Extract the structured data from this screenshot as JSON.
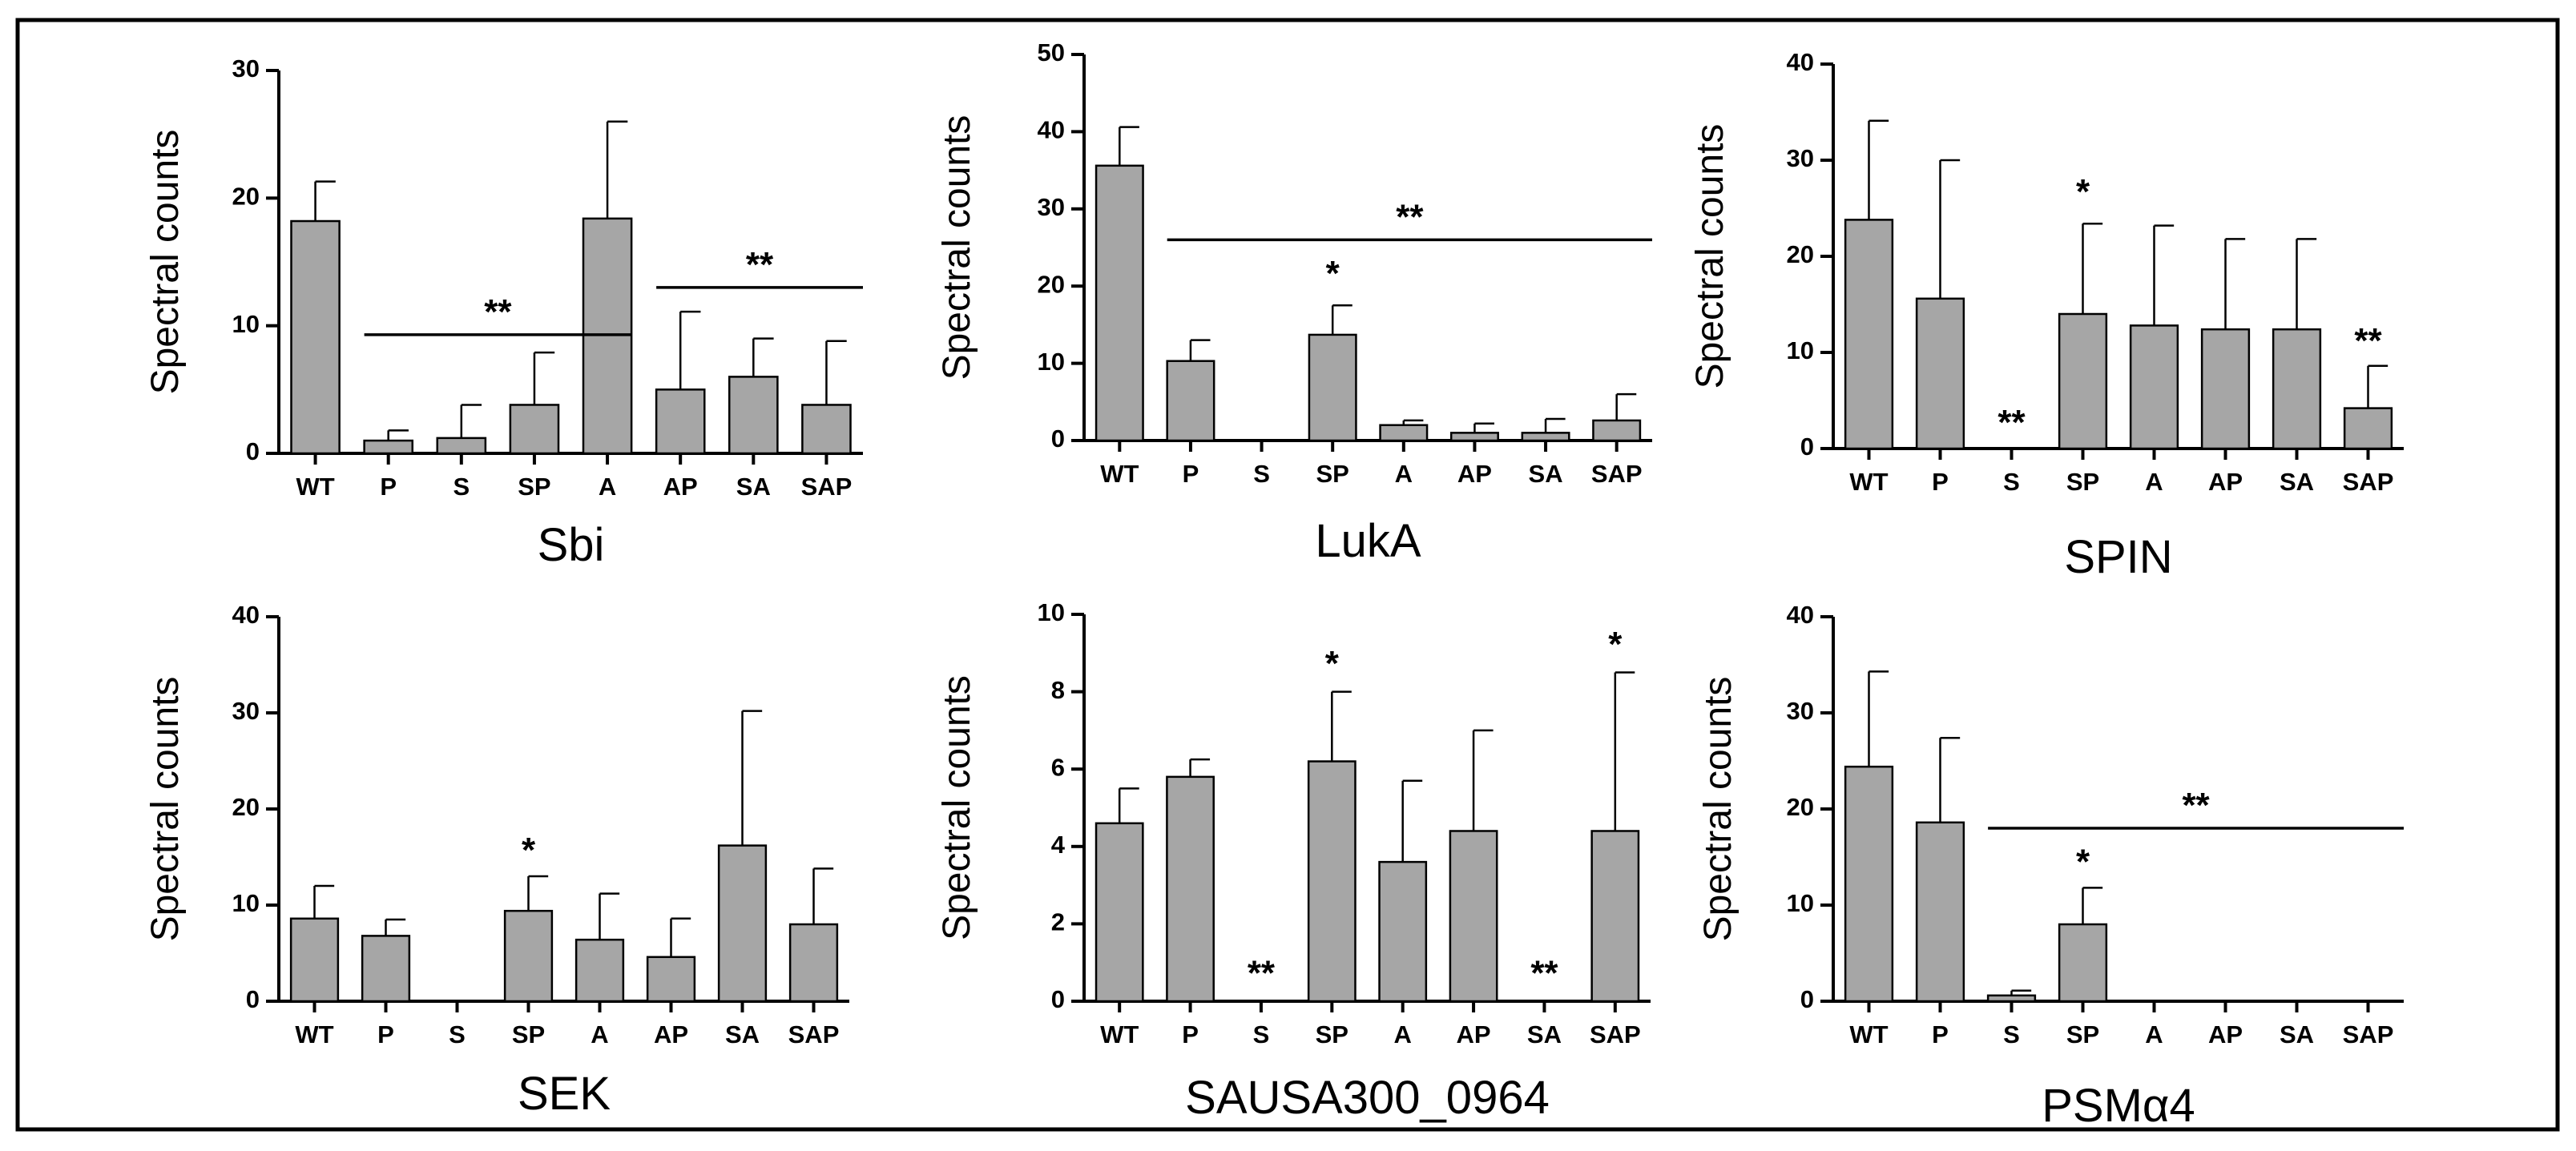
{
  "chart_data": [
    {
      "type": "bar",
      "title": "Sbi",
      "xlabel": "",
      "ylabel": "Spectral counts",
      "ylim": [
        0,
        30
      ],
      "yticks": [
        "0",
        "10",
        "20",
        "30"
      ],
      "categories": [
        "WT",
        "P",
        "S",
        "SP",
        "A",
        "AP",
        "SA",
        "SAP"
      ],
      "values": [
        18.2,
        1.0,
        1.2,
        3.8,
        18.4,
        5.0,
        6.0,
        3.8
      ],
      "errors": [
        3.1,
        0.8,
        2.6,
        4.1,
        7.6,
        6.1,
        3.0,
        5.0
      ],
      "significance": [
        {
          "label": "**",
          "from": "P",
          "to": "A",
          "y": 9.3
        },
        {
          "label": "**",
          "from": "AP",
          "to": "SAP",
          "y": 13.0
        }
      ]
    },
    {
      "type": "bar",
      "title": "LukA",
      "xlabel": "",
      "ylabel": "Spectral counts",
      "ylim": [
        0,
        50
      ],
      "yticks": [
        "0",
        "10",
        "20",
        "30",
        "40",
        "50"
      ],
      "categories": [
        "WT",
        "P",
        "S",
        "SP",
        "A",
        "AP",
        "SA",
        "SAP"
      ],
      "values": [
        35.6,
        10.3,
        0,
        13.7,
        2.0,
        1.0,
        1.0,
        2.6
      ],
      "errors": [
        5.0,
        2.7,
        0,
        3.8,
        0.6,
        1.2,
        1.8,
        3.4
      ],
      "significance": [
        {
          "label": "*",
          "at": "SP",
          "y": 19.5
        },
        {
          "label": "**",
          "from": "P",
          "to": "SAP",
          "y": 26.0
        }
      ]
    },
    {
      "type": "bar",
      "title": "SPIN",
      "xlabel": "",
      "ylabel": "Spectral counts",
      "ylim": [
        0,
        40
      ],
      "yticks": [
        "0",
        "10",
        "20",
        "30",
        "40"
      ],
      "categories": [
        "WT",
        "P",
        "S",
        "SP",
        "A",
        "AP",
        "SA",
        "SAP"
      ],
      "values": [
        23.8,
        15.6,
        0,
        14.0,
        12.8,
        12.4,
        12.4,
        4.2
      ],
      "errors": [
        10.3,
        14.4,
        0,
        9.4,
        10.4,
        9.4,
        9.4,
        4.4
      ],
      "significance": [
        {
          "label": "**",
          "at": "S",
          "y": 1.0
        },
        {
          "label": "*",
          "at": "SP",
          "y": 25.0
        },
        {
          "label": "**",
          "at": "SAP",
          "y": 9.5
        }
      ]
    },
    {
      "type": "bar",
      "title": "SEK",
      "xlabel": "",
      "ylabel": "Spectral counts",
      "ylim": [
        0,
        40
      ],
      "yticks": [
        "0",
        "10",
        "20",
        "30",
        "40"
      ],
      "categories": [
        "WT",
        "P",
        "S",
        "SP",
        "A",
        "AP",
        "SA",
        "SAP"
      ],
      "values": [
        8.6,
        6.8,
        0,
        9.4,
        6.4,
        4.6,
        16.2,
        8.0
      ],
      "errors": [
        3.4,
        1.7,
        0,
        3.6,
        4.8,
        4.0,
        14.0,
        5.8
      ],
      "significance": [
        {
          "label": "*",
          "at": "SP",
          "y": 14.0
        }
      ]
    },
    {
      "type": "bar",
      "title": "SAUSA300_0964",
      "xlabel": "",
      "ylabel": "Spectral counts",
      "ylim": [
        0,
        10
      ],
      "yticks": [
        "0",
        "2",
        "4",
        "6",
        "8",
        "10"
      ],
      "categories": [
        "WT",
        "P",
        "S",
        "SP",
        "A",
        "AP",
        "SA",
        "SAP"
      ],
      "values": [
        4.6,
        5.8,
        0,
        6.2,
        3.6,
        4.4,
        0,
        4.4
      ],
      "errors": [
        0.9,
        0.45,
        0,
        1.8,
        2.1,
        2.6,
        0,
        4.1
      ],
      "significance": [
        {
          "label": "**",
          "at": "S",
          "y": 0.3
        },
        {
          "label": "*",
          "at": "SP",
          "y": 8.3
        },
        {
          "label": "**",
          "at": "SA",
          "y": 0.3
        },
        {
          "label": "*",
          "at": "SAP",
          "y": 8.8
        }
      ]
    },
    {
      "type": "bar",
      "title": "PSMα4",
      "xlabel": "",
      "ylabel": "Spectral counts",
      "ylim": [
        0,
        40
      ],
      "yticks": [
        "0",
        "10",
        "20",
        "30",
        "40"
      ],
      "categories": [
        "WT",
        "P",
        "S",
        "SP",
        "A",
        "AP",
        "SA",
        "SAP"
      ],
      "values": [
        24.4,
        18.6,
        0.6,
        8.0,
        0,
        0,
        0,
        0
      ],
      "errors": [
        9.9,
        8.8,
        0.5,
        3.8,
        0,
        0,
        0,
        0
      ],
      "significance": [
        {
          "label": "*",
          "at": "SP",
          "y": 12.8
        },
        {
          "label": "**",
          "from": "S",
          "to": "SAP",
          "y": 18.0
        }
      ]
    }
  ]
}
